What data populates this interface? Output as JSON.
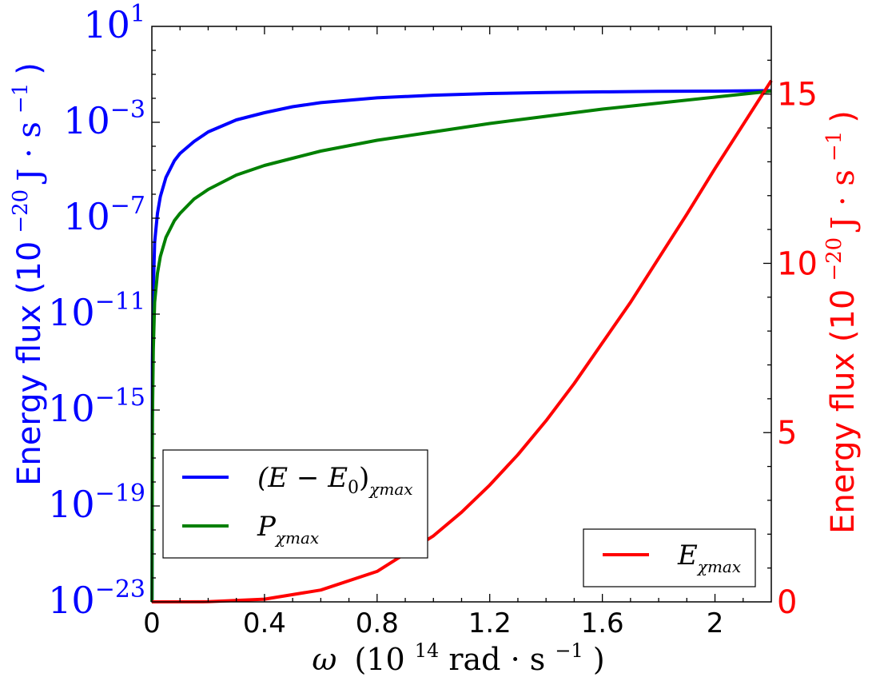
{
  "chart_data": {
    "type": "line",
    "grid": false,
    "x_axis": {
      "label_symbol": "ω",
      "label_unit_prefix": "(10",
      "label_unit_exp": "14",
      "label_unit_suffix": " rad · s",
      "label_unit_suffix_exp": "−1",
      "label_close": ")",
      "range": [
        0,
        2.2
      ],
      "ticks": [
        0,
        0.4,
        0.8,
        1.2,
        1.6,
        2.0
      ],
      "tick_labels": [
        "0",
        "0.4",
        "0.8",
        "1.2",
        "1.6",
        "2"
      ]
    },
    "y_left_axis": {
      "scale": "log",
      "color": "#0000ff",
      "label_text": "Energy flux (10",
      "label_exp": "−20",
      "label_unit": " J · s",
      "label_unit_exp": "−1",
      "label_close": ")",
      "range_exp": [
        -23,
        1
      ],
      "tick_exponents": [
        1,
        -3,
        -7,
        -11,
        -15,
        -19,
        -23
      ],
      "tick_base": "10",
      "tick_exp_labels": [
        "1",
        "−3",
        "−7",
        "−11",
        "−15",
        "−19",
        "−23"
      ]
    },
    "y_right_axis": {
      "scale": "linear",
      "color": "#ff0000",
      "label_text": "Energy flux (10",
      "label_exp": "−20",
      "label_unit": " J · s",
      "label_unit_exp": "−1",
      "label_close": ")",
      "range": [
        0,
        17
      ],
      "ticks": [
        0,
        5,
        10,
        15
      ],
      "tick_labels": [
        "0",
        "5",
        "10",
        "15"
      ]
    },
    "series": [
      {
        "name": "(E − E₀)χmax",
        "name_main": "(E − E",
        "name_sub0": "0",
        "name_close": ")",
        "name_sub": "χmax",
        "axis": "left",
        "color": "#0000ff",
        "x": [
          0.0005,
          0.002,
          0.005,
          0.01,
          0.02,
          0.03,
          0.05,
          0.08,
          0.1,
          0.15,
          0.2,
          0.3,
          0.4,
          0.5,
          0.6,
          0.8,
          1.0,
          1.2,
          1.4,
          1.6,
          1.8,
          2.0,
          2.2
        ],
        "log10_y": [
          -23.0,
          -13.0,
          -10.0,
          -8.0,
          -6.8,
          -6.1,
          -5.3,
          -4.6,
          -4.3,
          -3.8,
          -3.4,
          -2.9,
          -2.6,
          -2.35,
          -2.18,
          -1.98,
          -1.87,
          -1.8,
          -1.76,
          -1.73,
          -1.71,
          -1.7,
          -1.68
        ]
      },
      {
        "name": "Pχmax",
        "name_main": "P",
        "name_sub": "χmax",
        "axis": "left",
        "color": "#008000",
        "x": [
          0.0005,
          0.002,
          0.005,
          0.01,
          0.02,
          0.03,
          0.05,
          0.08,
          0.1,
          0.15,
          0.2,
          0.3,
          0.4,
          0.5,
          0.6,
          0.8,
          1.0,
          1.2,
          1.4,
          1.6,
          1.8,
          2.0,
          2.2
        ],
        "log10_y": [
          -23.0,
          -15.5,
          -12.5,
          -10.5,
          -9.3,
          -8.6,
          -7.8,
          -7.1,
          -6.8,
          -6.2,
          -5.8,
          -5.2,
          -4.8,
          -4.5,
          -4.2,
          -3.75,
          -3.4,
          -3.05,
          -2.75,
          -2.45,
          -2.2,
          -1.95,
          -1.7
        ]
      },
      {
        "name": "Eχmax",
        "name_main": "E",
        "name_sub": "χmax",
        "axis": "right",
        "color": "#ff0000",
        "x": [
          0.0,
          0.2,
          0.4,
          0.6,
          0.8,
          1.0,
          1.1,
          1.2,
          1.3,
          1.4,
          1.5,
          1.6,
          1.7,
          1.8,
          1.9,
          2.0,
          2.1,
          2.2
        ],
        "y": [
          0.0,
          0.005,
          0.08,
          0.35,
          0.9,
          1.95,
          2.65,
          3.45,
          4.35,
          5.35,
          6.45,
          7.65,
          8.85,
          10.15,
          11.45,
          12.8,
          14.1,
          15.4
        ]
      }
    ],
    "legends": [
      {
        "placement": "lower-left",
        "entries": [
          0,
          1
        ]
      },
      {
        "placement": "lower-right",
        "entries": [
          2
        ]
      }
    ]
  }
}
